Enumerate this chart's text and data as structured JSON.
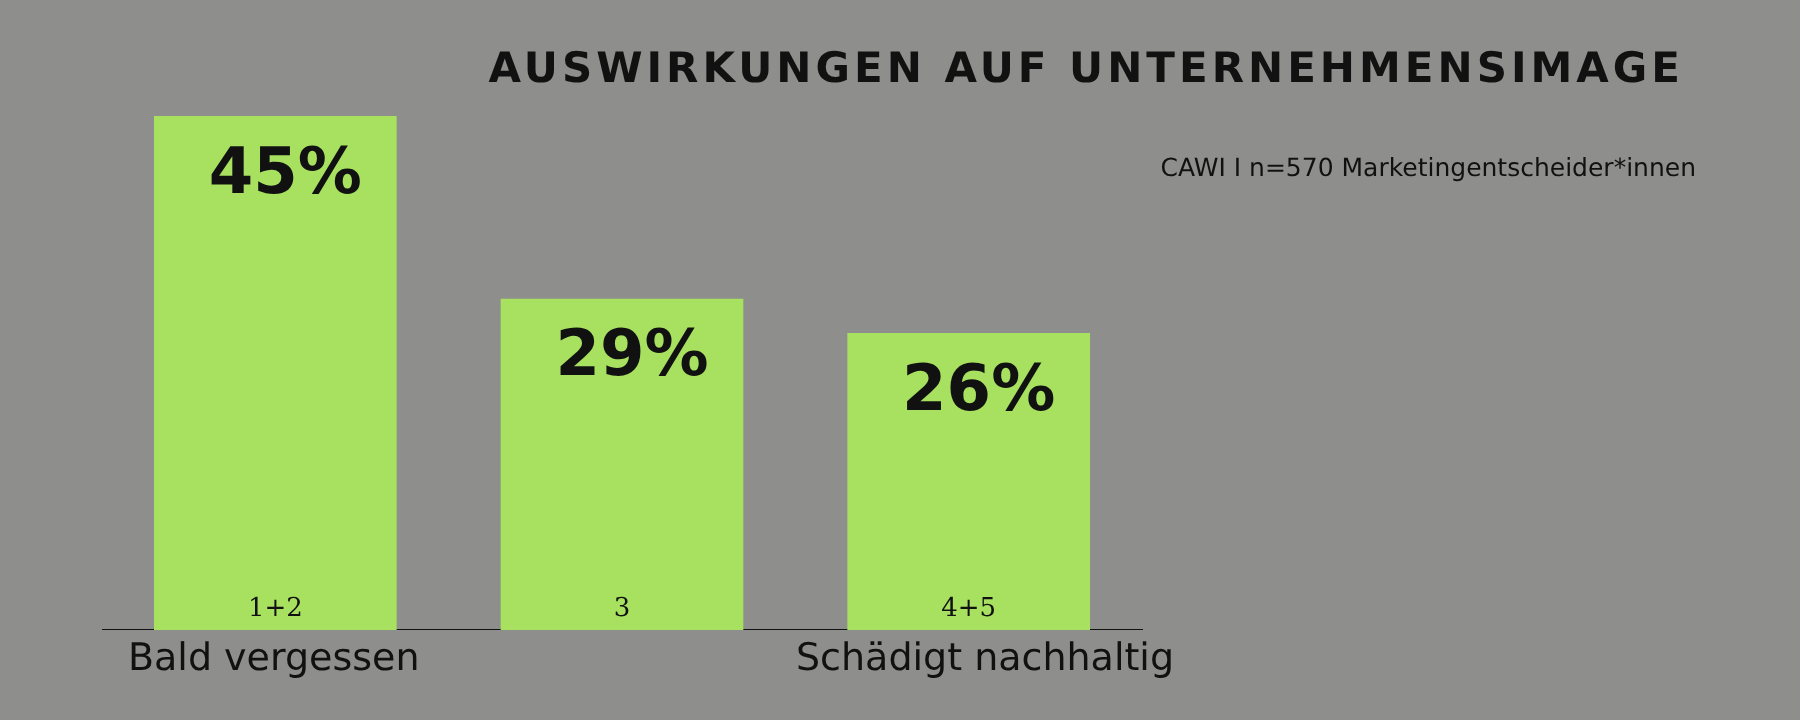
{
  "chart_data": {
    "type": "bar",
    "title": "AUSWIRKUNGEN AUF UNTERNEHMENSIMAGE",
    "categories": [
      "1+2",
      "3",
      "4+5"
    ],
    "values": [
      45,
      29,
      26
    ],
    "color": "#a8e060",
    "value_labels": [
      "45%",
      "29%",
      "26%"
    ],
    "annotations": [
      "CAWI I n=570 Marketingentscheider*innen",
      "Bald vergessen",
      "Schädigt nachhaltig"
    ],
    "grid": false,
    "legend": false
  }
}
